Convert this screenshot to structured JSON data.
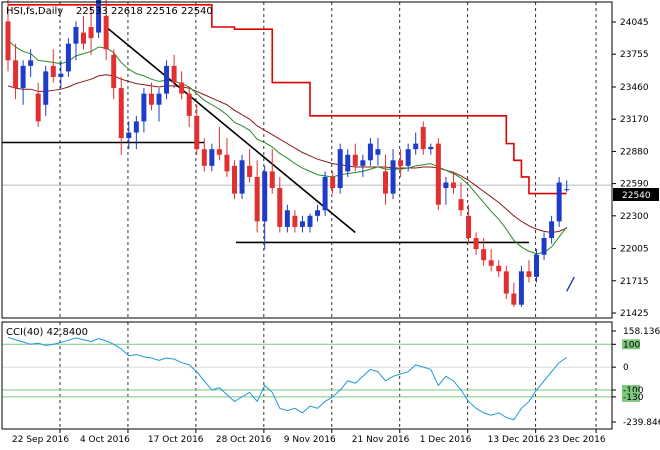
{
  "header": {
    "symbol_label": "HSI,fs,Daily",
    "ohlc_label": "22533 22618 22516 22540",
    "price_tag": "22540"
  },
  "chart_data": [
    {
      "type": "candlestick",
      "title": "HSI,fs,Daily 22533 22618 22516 22540",
      "ylim": [
        21425,
        24200
      ],
      "y_ticks": [
        "24045",
        "23755",
        "23460",
        "23170",
        "22880",
        "22590",
        "22300",
        "22005",
        "21715",
        "21425"
      ],
      "x_ticks": [
        "22 Sep 2016",
        "4 Oct 2016",
        "17 Oct 2016",
        "28 Oct 2016",
        "9 Nov 2016",
        "21 Nov 2016",
        "1 Dec 2016",
        "13 Dec 2016",
        "23 Dec 2016"
      ],
      "last_price": 22540,
      "colors": {
        "up": "#1e3cc8",
        "down": "#e03030",
        "trail_stop": "#e00000",
        "ema_fast": "#2a8a2a",
        "ema_slow": "#8b1a1a",
        "trend": "#000000",
        "ask_line": "#9aa0b0"
      },
      "candles": [
        [
          24050,
          24250,
          23600,
          23700
        ],
        [
          23700,
          23850,
          23350,
          23450
        ],
        [
          23450,
          23700,
          23300,
          23650
        ],
        [
          23650,
          23800,
          23550,
          23700
        ],
        [
          23400,
          23500,
          23100,
          23150
        ],
        [
          23300,
          23650,
          23200,
          23600
        ],
        [
          23650,
          23800,
          23500,
          23550
        ],
        [
          23550,
          23700,
          23450,
          23580
        ],
        [
          23600,
          23900,
          23550,
          23850
        ],
        [
          23850,
          24050,
          23700,
          24000
        ],
        [
          23950,
          24100,
          23800,
          23850
        ],
        [
          24000,
          24200,
          23750,
          23900
        ],
        [
          23950,
          24300,
          23900,
          24250
        ],
        [
          24100,
          24250,
          23700,
          23800
        ],
        [
          23750,
          23800,
          23350,
          23450
        ],
        [
          23450,
          23550,
          22850,
          23000
        ],
        [
          23000,
          23150,
          22900,
          23050
        ],
        [
          23050,
          23200,
          22900,
          23150
        ],
        [
          23150,
          23450,
          23050,
          23400
        ],
        [
          23400,
          23500,
          23250,
          23300
        ],
        [
          23300,
          23450,
          23150,
          23400
        ],
        [
          23400,
          23700,
          23350,
          23650
        ],
        [
          23650,
          23750,
          23450,
          23500
        ],
        [
          23500,
          23600,
          23350,
          23400
        ],
        [
          23400,
          23450,
          23100,
          23200
        ],
        [
          23200,
          23300,
          22850,
          22900
        ],
        [
          22900,
          23000,
          22700,
          22750
        ],
        [
          22750,
          22950,
          22700,
          22900
        ],
        [
          22900,
          23100,
          22800,
          22850
        ],
        [
          22850,
          23000,
          22650,
          22700
        ],
        [
          22750,
          22800,
          22450,
          22500
        ],
        [
          22500,
          22850,
          22450,
          22800
        ],
        [
          22750,
          22900,
          22600,
          22650
        ],
        [
          22650,
          22800,
          22150,
          22250
        ],
        [
          22250,
          22750,
          22000,
          22700
        ],
        [
          22700,
          22900,
          22500,
          22550
        ],
        [
          22550,
          22650,
          22150,
          22200
        ],
        [
          22200,
          22400,
          22150,
          22350
        ],
        [
          22300,
          22350,
          22150,
          22200
        ],
        [
          22200,
          22300,
          22150,
          22250
        ],
        [
          22200,
          22320,
          22150,
          22300
        ],
        [
          22300,
          22400,
          22250,
          22350
        ],
        [
          22350,
          22700,
          22300,
          22650
        ],
        [
          22650,
          22700,
          22500,
          22550
        ],
        [
          22550,
          22950,
          22500,
          22900
        ],
        [
          22700,
          22900,
          22650,
          22850
        ],
        [
          22850,
          22950,
          22700,
          22750
        ],
        [
          22750,
          22850,
          22650,
          22800
        ],
        [
          22800,
          23000,
          22750,
          22950
        ],
        [
          22850,
          23000,
          22750,
          22900
        ],
        [
          22700,
          22850,
          22400,
          22500
        ],
        [
          22500,
          22900,
          22450,
          22800
        ],
        [
          22800,
          22900,
          22650,
          22750
        ],
        [
          22750,
          22950,
          22700,
          22900
        ],
        [
          22900,
          23050,
          22850,
          22950
        ],
        [
          23100,
          23150,
          22850,
          22900
        ],
        [
          22900,
          22950,
          22850,
          22920
        ],
        [
          22950,
          23000,
          22350,
          22400
        ],
        [
          22550,
          22650,
          22400,
          22600
        ],
        [
          22600,
          22700,
          22500,
          22550
        ],
        [
          22450,
          22600,
          22300,
          22350
        ],
        [
          22300,
          22400,
          22050,
          22100
        ],
        [
          22100,
          22150,
          21950,
          22000
        ],
        [
          22000,
          22100,
          21850,
          21900
        ],
        [
          21900,
          22000,
          21800,
          21850
        ],
        [
          21850,
          21900,
          21750,
          21800
        ],
        [
          21800,
          21850,
          21550,
          21600
        ],
        [
          21600,
          21700,
          21480,
          21500
        ],
        [
          21500,
          21850,
          21480,
          21800
        ],
        [
          21800,
          21900,
          21700,
          21750
        ],
        [
          21750,
          22000,
          21700,
          21950
        ],
        [
          21950,
          22150,
          21900,
          22100
        ],
        [
          22100,
          22300,
          22050,
          22250
        ],
        [
          22250,
          22650,
          22200,
          22600
        ],
        [
          22533,
          22618,
          22516,
          22540
        ]
      ],
      "ema_fast": [
        23880,
        23820,
        23780,
        23760,
        23700,
        23690,
        23680,
        23670,
        23690,
        23740,
        23760,
        23780,
        23820,
        23810,
        23770,
        23680,
        23620,
        23580,
        23560,
        23530,
        23510,
        23520,
        23510,
        23490,
        23460,
        23400,
        23340,
        23300,
        23260,
        23210,
        23140,
        23110,
        23070,
        22990,
        22960,
        22920,
        22860,
        22820,
        22770,
        22730,
        22700,
        22670,
        22660,
        22650,
        22670,
        22680,
        22690,
        22700,
        22720,
        22740,
        22720,
        22720,
        22720,
        22730,
        22750,
        22760,
        22770,
        22740,
        22710,
        22680,
        22640,
        22580,
        22500,
        22420,
        22340,
        22270,
        22180,
        22080,
        22020,
        21980,
        21960,
        21970,
        22020,
        22110,
        22200
      ],
      "ema_slow": [
        23470,
        23450,
        23440,
        23440,
        23420,
        23420,
        23430,
        23440,
        23460,
        23490,
        23510,
        23530,
        23560,
        23570,
        23560,
        23530,
        23510,
        23490,
        23480,
        23470,
        23460,
        23470,
        23470,
        23460,
        23450,
        23420,
        23390,
        23360,
        23330,
        23300,
        23250,
        23210,
        23170,
        23110,
        23070,
        23030,
        22990,
        22950,
        22910,
        22870,
        22840,
        22810,
        22790,
        22770,
        22760,
        22750,
        22740,
        22740,
        22740,
        22740,
        22740,
        22730,
        22730,
        22730,
        22730,
        22740,
        22740,
        22730,
        22710,
        22690,
        22660,
        22620,
        22570,
        22520,
        22470,
        22420,
        22360,
        22300,
        22250,
        22210,
        22180,
        22160,
        22150,
        22160,
        22190
      ],
      "trail_stop": [
        24200,
        24200,
        24200,
        24200,
        24200,
        24200,
        24200,
        24200,
        24200,
        24200,
        24200,
        24200,
        24200,
        24200,
        24200,
        24200,
        24200,
        24200,
        24200,
        24200,
        24200,
        24200,
        24200,
        24200,
        24200,
        24200,
        24200,
        24000,
        24000,
        24000,
        23980,
        23980,
        23980,
        23980,
        23980,
        23500,
        23500,
        23500,
        23500,
        23500,
        23200,
        23200,
        23200,
        23200,
        23200,
        23200,
        23200,
        23200,
        23200,
        23200,
        23200,
        23200,
        23200,
        23200,
        23200,
        23200,
        23200,
        23200,
        23200,
        23200,
        23200,
        23200,
        23200,
        23200,
        23200,
        23200,
        22950,
        22800,
        22650,
        22500,
        22500,
        22500,
        22500,
        22500,
        22500
      ],
      "trend_line": {
        "from": [
          13,
          24000
        ],
        "to": [
          46,
          22150
        ]
      },
      "hlines": [
        {
          "y": 22960,
          "from": 0,
          "to": 26
        },
        {
          "y": 22060,
          "from": 31,
          "to": 69
        }
      ],
      "arrow": {
        "from": [
          74,
          21620
        ],
        "to": [
          75,
          21750
        ]
      }
    },
    {
      "type": "line",
      "title": "CCI(40) 42.8400",
      "ylim": [
        -239.846,
        158.1367
      ],
      "y_ticks": [
        "158.1367",
        "100",
        "0",
        "-100",
        "-130",
        "-239.846"
      ],
      "levels": [
        100,
        -100,
        -130
      ],
      "values": [
        130,
        120,
        110,
        100,
        105,
        95,
        100,
        108,
        118,
        128,
        120,
        112,
        125,
        115,
        100,
        80,
        50,
        55,
        45,
        40,
        30,
        40,
        35,
        20,
        10,
        -20,
        -60,
        -100,
        -90,
        -120,
        -150,
        -130,
        -110,
        -150,
        -80,
        -110,
        -180,
        -190,
        -180,
        -200,
        -170,
        -180,
        -150,
        -130,
        -100,
        -60,
        -70,
        -40,
        -10,
        -20,
        -60,
        -40,
        -30,
        -20,
        10,
        0,
        -10,
        -80,
        -40,
        -60,
        -100,
        -150,
        -180,
        -200,
        -210,
        -200,
        -220,
        -230,
        -180,
        -150,
        -100,
        -60,
        -20,
        20,
        42.84
      ]
    }
  ]
}
